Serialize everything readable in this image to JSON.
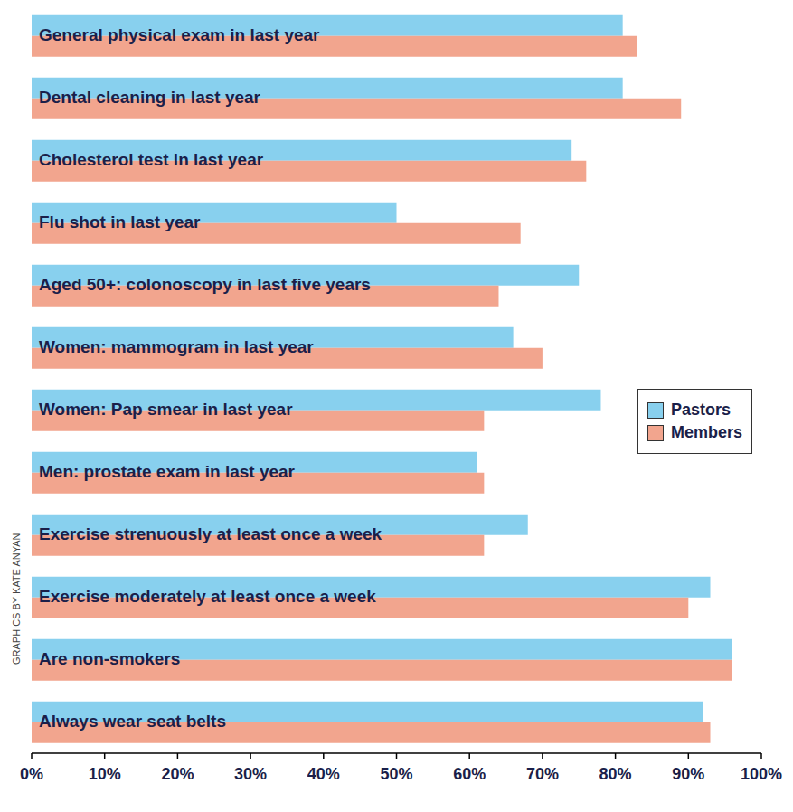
{
  "chart_data": {
    "type": "bar",
    "orientation": "horizontal",
    "categories": [
      "General physical exam in last year",
      "Dental cleaning in last year",
      "Cholesterol test in last year",
      "Flu shot in last year",
      "Aged 50+: colonoscopy in last five years",
      "Women: mammogram in last year",
      "Women: Pap smear in last year",
      "Men: prostate exam in last year",
      "Exercise strenuously at least once a week",
      "Exercise moderately at least once a week",
      "Are non-smokers",
      "Always wear seat belts"
    ],
    "series": [
      {
        "name": "Pastors",
        "color": "#88D0EE",
        "values": [
          81,
          81,
          74,
          50,
          75,
          66,
          78,
          61,
          68,
          93,
          96,
          92
        ]
      },
      {
        "name": "Members",
        "color": "#F2A58E",
        "values": [
          83,
          89,
          76,
          67,
          64,
          70,
          62,
          62,
          62,
          90,
          96,
          93
        ]
      }
    ],
    "xlim": [
      0,
      100
    ],
    "xticks": [
      {
        "value": 0,
        "label": "0%"
      },
      {
        "value": 10,
        "label": "10%"
      },
      {
        "value": 20,
        "label": "20%"
      },
      {
        "value": 30,
        "label": "30%"
      },
      {
        "value": 40,
        "label": "40%"
      },
      {
        "value": 50,
        "label": "50%"
      },
      {
        "value": 60,
        "label": "60%"
      },
      {
        "value": 70,
        "label": "70%"
      },
      {
        "value": 80,
        "label": "80%"
      },
      {
        "value": 90,
        "label": "90%"
      },
      {
        "value": 100,
        "label": "100%"
      }
    ],
    "legend": "right",
    "grid": false,
    "tick_labels": "x",
    "annotations": [
      "GRAPHICS BY KATE ANYAN"
    ]
  }
}
